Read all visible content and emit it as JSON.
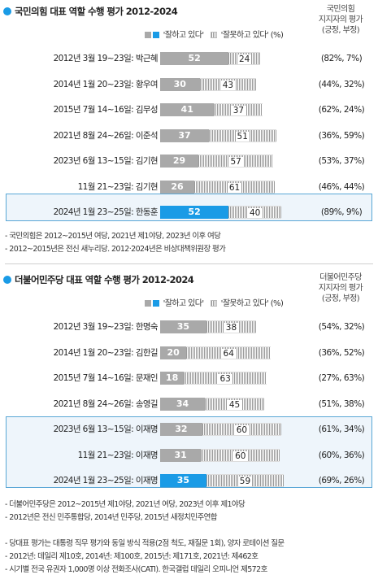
{
  "colors": {
    "positive": "#a9a9a9",
    "highlight": "#1a9be6",
    "accent": "#1a9be6"
  },
  "legend": {
    "positive_label": "'잘하고 있다'",
    "negative_label": "'잘못하고 있다'",
    "unit": "(%)"
  },
  "sections": [
    {
      "title": "국민의힘 대표 역할 수행 평가 2012-2024",
      "supporter_header": [
        "국민의힘",
        "지지자의 평가",
        "(긍정, 부정)"
      ],
      "notes": [
        "- 국민의힘은 2012~2015년 여당, 2021년 제1야당, 2023년 이후 여당",
        "- 2012~2015년은 전신 새누리당. 2012·2024년은 비상대책위원장 평가"
      ]
    },
    {
      "title": "더불어민주당 대표 역할 수행 평가 2012-2024",
      "supporter_header": [
        "더불어민주당",
        "지지자의 평가",
        "(긍정, 부정)"
      ],
      "notes": [
        "- 더불어민주당은 2012~2015년 제1야당, 2021년 여당, 2023년 이후 제1야당",
        "- 2012년은 전신 민주통합당, 2014년 민주당, 2015년 새정치민주연합"
      ]
    }
  ],
  "footer_notes": [
    "- 당대표 평가는 대통령 직무 평가와 동일 방식 적용(2점 척도, 재질문 1회), 양자 로테이션 질문",
    "- 2012년: 데일리 제10호, 2014년: 제100호, 2015년: 제171호, 2021년: 제462호",
    "- 시기별 전국 유권자 1,000명 이상 전화조사(CATI). 한국갤럽 데일리 오피니언 제572호"
  ],
  "chart_data": [
    {
      "type": "bar",
      "title": "국민의힘 대표 역할 수행 평가 2012-2024",
      "stacked": true,
      "orientation": "horizontal",
      "categories": [
        "2012년 3월 19~23일: 박근혜",
        "2014년 1월 20~23일: 황우여",
        "2015년 7월 14~16일: 김무성",
        "2021년 8월 24~26일: 이준석",
        "2023년 6월 13~15일: 김기현",
        "11월 21~23일: 김기현",
        "2024년 1월 23~25일: 한동훈"
      ],
      "series": [
        {
          "name": "'잘하고 있다'",
          "values": [
            52,
            30,
            41,
            37,
            29,
            26,
            52
          ]
        },
        {
          "name": "'잘못하고 있다'",
          "values": [
            24,
            43,
            37,
            51,
            57,
            61,
            40
          ]
        }
      ],
      "supporter_eval": [
        "(82%,  7%)",
        "(44%, 32%)",
        "(62%, 24%)",
        "(36%, 59%)",
        "(53%, 37%)",
        "(46%, 44%)",
        "(89%,  9%)"
      ],
      "highlight": [
        6
      ],
      "xlim": [
        0,
        100
      ]
    },
    {
      "type": "bar",
      "title": "더불어민주당 대표 역할 수행 평가 2012-2024",
      "stacked": true,
      "orientation": "horizontal",
      "categories": [
        "2012년 3월 19~23일: 한명숙",
        "2014년 1월 20~23일: 김한길",
        "2015년 7월 14~16일: 문재인",
        "2021년 8월 24~26일: 송영길",
        "2023년 6월 13~15일: 이재명",
        "11월 21~23일: 이재명",
        "2024년 1월 23~25일: 이재명"
      ],
      "series": [
        {
          "name": "'잘하고 있다'",
          "values": [
            35,
            20,
            18,
            34,
            32,
            31,
            35
          ]
        },
        {
          "name": "'잘못하고 있다'",
          "values": [
            38,
            64,
            63,
            45,
            60,
            60,
            59
          ]
        }
      ],
      "supporter_eval": [
        "(54%, 32%)",
        "(36%, 52%)",
        "(27%, 63%)",
        "(51%, 38%)",
        "(61%, 34%)",
        "(60%, 36%)",
        "(69%, 26%)"
      ],
      "highlight": [
        6
      ],
      "xlim": [
        0,
        100
      ]
    }
  ]
}
